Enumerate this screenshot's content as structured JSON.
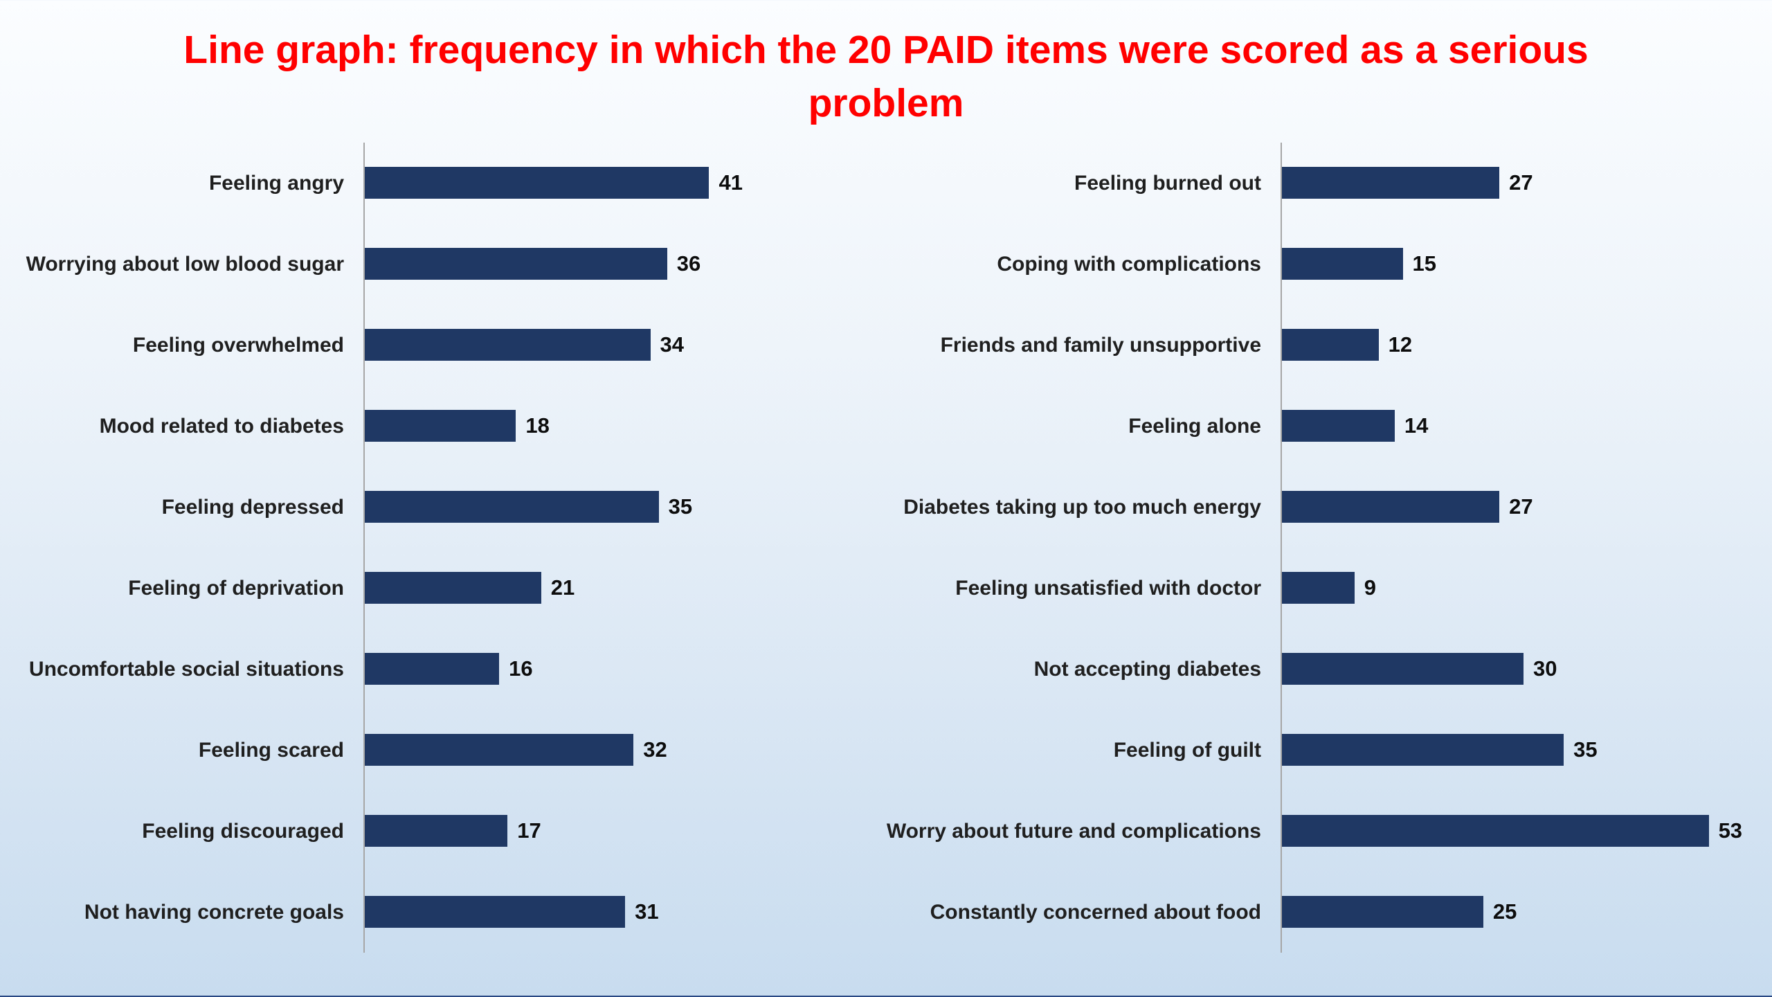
{
  "title": "Line graph: frequency in which the 20 PAID items were scored as a serious problem",
  "colors": {
    "title": "#ff0000",
    "bar": "#1f3864",
    "axis": "#a6a6a6",
    "footer_strip": "#1e3765",
    "background_top": "#fbfdff",
    "background_bottom": "#c8dcef"
  },
  "chart_data": [
    {
      "type": "bar",
      "orientation": "horizontal",
      "panel": "left",
      "title": "",
      "xlabel": "",
      "ylabel": "",
      "xlim": [
        0,
        60
      ],
      "grid": false,
      "legend": false,
      "data_labels": true,
      "bar_color": "#1f3864",
      "categories": [
        "Feeling angry",
        "Worrying about low blood sugar",
        "Feeling overwhelmed",
        "Mood related to diabetes",
        "Feeling depressed",
        "Feeling of deprivation",
        "Uncomfortable social situations",
        "Feeling scared",
        "Feeling discouraged",
        "Not having concrete goals"
      ],
      "values": [
        41,
        36,
        34,
        18,
        35,
        21,
        16,
        32,
        17,
        31
      ]
    },
    {
      "type": "bar",
      "orientation": "horizontal",
      "panel": "right",
      "title": "",
      "xlabel": "",
      "ylabel": "",
      "xlim": [
        0,
        60
      ],
      "grid": false,
      "legend": false,
      "data_labels": true,
      "bar_color": "#1f3864",
      "categories": [
        "Feeling burned out",
        "Coping with complications",
        "Friends and family unsupportive",
        "Feeling alone",
        "Diabetes taking up too much energy",
        "Feeling unsatisfied with doctor",
        "Not accepting diabetes",
        "Feeling of guilt",
        "Worry about future and complications",
        "Constantly concerned about food"
      ],
      "values": [
        27,
        15,
        12,
        14,
        27,
        9,
        30,
        35,
        53,
        25
      ]
    }
  ]
}
